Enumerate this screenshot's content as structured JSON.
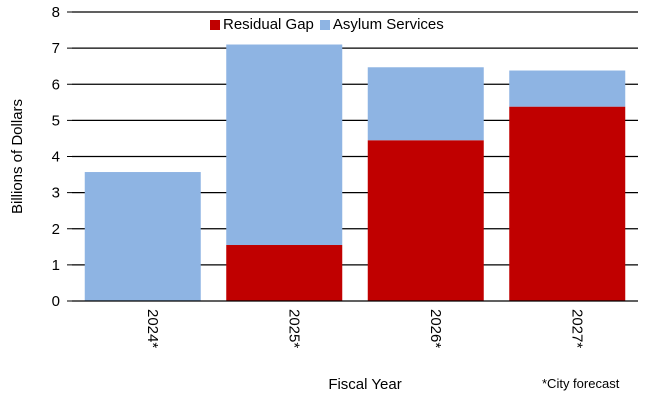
{
  "chart_data": {
    "type": "bar",
    "stacked": true,
    "title": "",
    "categories": [
      "2024*",
      "2025*",
      "2026*",
      "2027*"
    ],
    "series": [
      {
        "name": "Residual Gap",
        "color": "#c00000",
        "values": [
          0.0,
          1.55,
          4.45,
          5.38
        ]
      },
      {
        "name": "Asylum Services",
        "color": "#8eb4e3",
        "values": [
          3.57,
          5.55,
          2.02,
          1.0
        ]
      }
    ],
    "xlabel": "Fiscal Year",
    "ylabel": "Billions of Dollars",
    "ylim": [
      0,
      8
    ],
    "yticks": [
      0,
      1,
      2,
      3,
      4,
      5,
      6,
      7,
      8
    ],
    "grid": "horizontal",
    "legend_position": "top-center",
    "footnote": "*City forecast"
  }
}
